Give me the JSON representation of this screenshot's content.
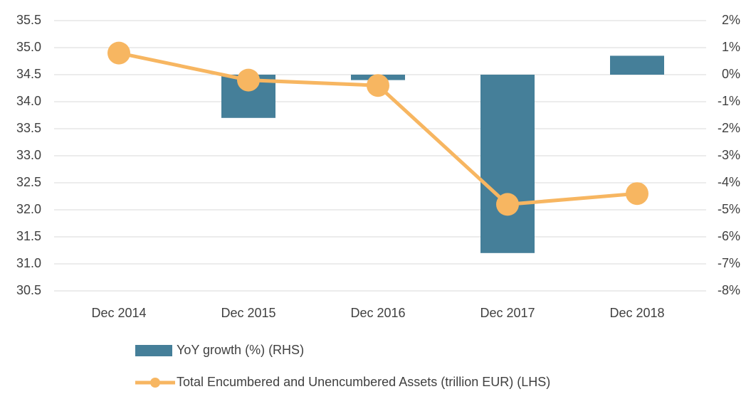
{
  "chart_data": {
    "type": "bar-line",
    "categories": [
      "Dec 2014",
      "Dec 2015",
      "Dec 2016",
      "Dec 2017",
      "Dec 2018"
    ],
    "series": [
      {
        "name": "YoY growth (%) (RHS)",
        "type": "bar",
        "axis": "y2",
        "color": "#457f99",
        "values": [
          null,
          -1.6,
          -0.2,
          -6.6,
          0.7
        ]
      },
      {
        "name": "Total Encumbered and Unencumbered Assets (trillion EUR) (LHS)",
        "type": "line",
        "axis": "y",
        "color": "#f7b661",
        "values": [
          34.9,
          34.4,
          34.3,
          32.1,
          32.3
        ]
      }
    ],
    "ylim": [
      30.5,
      35.5
    ],
    "yticks": [
      30.5,
      {
        "value": 31,
        "label": "31.0"
      },
      31.5,
      {
        "value": 32,
        "label": "32.0"
      },
      32.5,
      {
        "value": 33,
        "label": "33.0"
      },
      33.5,
      {
        "value": 34,
        "label": "34.0"
      },
      34.5,
      {
        "value": 35,
        "label": "35.0"
      },
      35.5
    ],
    "y2lim": [
      -8,
      2
    ],
    "y2ticks": [
      {
        "value": -8,
        "label": "-8%"
      },
      {
        "value": -7,
        "label": "-7%"
      },
      {
        "value": -6,
        "label": "-6%"
      },
      {
        "value": -5,
        "label": "-5%"
      },
      {
        "value": -4,
        "label": "-4%"
      },
      {
        "value": -3,
        "label": "-3%"
      },
      {
        "value": -2,
        "label": "-2%"
      },
      {
        "value": -1,
        "label": "-1%"
      },
      {
        "value": 0,
        "label": "0%"
      },
      {
        "value": 1,
        "label": "1%"
      },
      {
        "value": 2,
        "label": "2%"
      }
    ],
    "grid": true
  }
}
